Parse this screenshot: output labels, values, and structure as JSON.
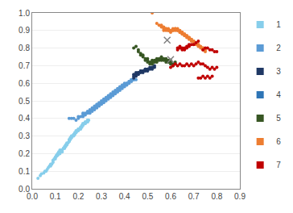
{
  "chart_data": {
    "type": "scatter",
    "marker": "circle",
    "grid": "y",
    "legend": "right",
    "xlim": [
      0.0,
      0.9
    ],
    "ylim": [
      0.0,
      1.0
    ],
    "xticks": [
      {
        "value": 0,
        "label": "0.0"
      },
      0.1,
      0.2,
      0.3,
      0.4,
      0.5,
      0.6,
      0.7,
      0.8,
      0.9
    ],
    "yticks": [
      {
        "value": 0,
        "label": "0.0"
      },
      0.1,
      0.2,
      0.3,
      0.4,
      0.5,
      0.6,
      0.7,
      0.8,
      0.9,
      {
        "value": 1,
        "label": "1.0"
      }
    ],
    "series": [
      {
        "name": "1",
        "color": "#87CEEB",
        "x": [
          0.025,
          0.035,
          0.04,
          0.05,
          0.055,
          0.06,
          0.065,
          0.07,
          0.075,
          0.08,
          0.085,
          0.09,
          0.09,
          0.095,
          0.1,
          0.1,
          0.105,
          0.105,
          0.11,
          0.11,
          0.115,
          0.115,
          0.12,
          0.12,
          0.125,
          0.13,
          0.13,
          0.135,
          0.14,
          0.14,
          0.145,
          0.145,
          0.15,
          0.15,
          0.155,
          0.16,
          0.16,
          0.165,
          0.165,
          0.17,
          0.17,
          0.175,
          0.18,
          0.18,
          0.185,
          0.185,
          0.19,
          0.19,
          0.195,
          0.2,
          0.2,
          0.205,
          0.21,
          0.21,
          0.215,
          0.215,
          0.22,
          0.22,
          0.225,
          0.23,
          0.23,
          0.235,
          0.24,
          0.24,
          0.245,
          0.08,
          0.09,
          0.1,
          0.11,
          0.12,
          0.13,
          0.14,
          0.15,
          0.16,
          0.17,
          0.18,
          0.19,
          0.2,
          0.21,
          0.22,
          0.23,
          0.24
        ],
        "values": [
          0.06,
          0.075,
          0.085,
          0.09,
          0.1,
          0.1,
          0.11,
          0.12,
          0.13,
          0.13,
          0.14,
          0.15,
          0.16,
          0.17,
          0.175,
          0.18,
          0.185,
          0.19,
          0.19,
          0.2,
          0.2,
          0.21,
          0.21,
          0.22,
          0.22,
          0.22,
          0.21,
          0.23,
          0.23,
          0.24,
          0.24,
          0.25,
          0.25,
          0.26,
          0.26,
          0.27,
          0.28,
          0.28,
          0.29,
          0.29,
          0.3,
          0.3,
          0.3,
          0.31,
          0.31,
          0.32,
          0.32,
          0.33,
          0.33,
          0.33,
          0.34,
          0.34,
          0.34,
          0.35,
          0.35,
          0.36,
          0.36,
          0.37,
          0.37,
          0.37,
          0.38,
          0.38,
          0.38,
          0.39,
          0.39,
          0.14,
          0.16,
          0.17,
          0.19,
          0.2,
          0.22,
          0.23,
          0.25,
          0.27,
          0.29,
          0.31,
          0.32,
          0.34,
          0.35,
          0.37,
          0.38,
          0.39
        ]
      },
      {
        "name": "2",
        "color": "#5B9BD5",
        "x": [
          0.16,
          0.17,
          0.18,
          0.19,
          0.2,
          0.2,
          0.21,
          0.22,
          0.22,
          0.23,
          0.24,
          0.25,
          0.25,
          0.26,
          0.26,
          0.27,
          0.27,
          0.28,
          0.28,
          0.29,
          0.29,
          0.3,
          0.3,
          0.31,
          0.31,
          0.32,
          0.32,
          0.33,
          0.33,
          0.34,
          0.34,
          0.35,
          0.35,
          0.36,
          0.36,
          0.37,
          0.37,
          0.38,
          0.38,
          0.39,
          0.39,
          0.4,
          0.4,
          0.41,
          0.41,
          0.42,
          0.42,
          0.43,
          0.43,
          0.44,
          0.44,
          0.45,
          0.22,
          0.24,
          0.26,
          0.28,
          0.3,
          0.32,
          0.34,
          0.36,
          0.38,
          0.4,
          0.42,
          0.23,
          0.25,
          0.27,
          0.29,
          0.31,
          0.33,
          0.35,
          0.37,
          0.39,
          0.41,
          0.43
        ],
        "values": [
          0.4,
          0.4,
          0.4,
          0.39,
          0.4,
          0.41,
          0.41,
          0.41,
          0.42,
          0.42,
          0.43,
          0.43,
          0.44,
          0.44,
          0.45,
          0.45,
          0.46,
          0.46,
          0.47,
          0.47,
          0.48,
          0.48,
          0.49,
          0.49,
          0.5,
          0.5,
          0.51,
          0.51,
          0.52,
          0.52,
          0.53,
          0.53,
          0.54,
          0.54,
          0.55,
          0.55,
          0.56,
          0.56,
          0.57,
          0.57,
          0.58,
          0.58,
          0.59,
          0.59,
          0.6,
          0.6,
          0.61,
          0.61,
          0.62,
          0.62,
          0.62,
          0.62,
          0.43,
          0.44,
          0.46,
          0.48,
          0.5,
          0.52,
          0.54,
          0.56,
          0.58,
          0.6,
          0.61,
          0.43,
          0.45,
          0.47,
          0.49,
          0.51,
          0.53,
          0.55,
          0.57,
          0.59,
          0.6,
          0.62
        ]
      },
      {
        "name": "3",
        "color": "#1F3864",
        "x": [
          0.44,
          0.44,
          0.45,
          0.45,
          0.46,
          0.46,
          0.47,
          0.47,
          0.48,
          0.48,
          0.49,
          0.49,
          0.5,
          0.5,
          0.51,
          0.51,
          0.52,
          0.52,
          0.53,
          0.53,
          0.44,
          0.46,
          0.48,
          0.5,
          0.52,
          0.45,
          0.47,
          0.49
        ],
        "values": [
          0.63,
          0.64,
          0.64,
          0.65,
          0.65,
          0.66,
          0.66,
          0.67,
          0.66,
          0.67,
          0.67,
          0.68,
          0.67,
          0.68,
          0.68,
          0.69,
          0.68,
          0.69,
          0.69,
          0.7,
          0.65,
          0.66,
          0.67,
          0.68,
          0.69,
          0.66,
          0.67,
          0.68
        ]
      },
      {
        "name": "4",
        "color": "#2E75B6",
        "x": [],
        "values": []
      },
      {
        "name": "5",
        "color": "#375623",
        "x": [
          0.44,
          0.45,
          0.46,
          0.46,
          0.47,
          0.47,
          0.48,
          0.48,
          0.49,
          0.49,
          0.5,
          0.5,
          0.51,
          0.51,
          0.52,
          0.52,
          0.53,
          0.53,
          0.54,
          0.54,
          0.55,
          0.55,
          0.56,
          0.56,
          0.57,
          0.57,
          0.58,
          0.58,
          0.59,
          0.59,
          0.6,
          0.6,
          0.61,
          0.61,
          0.62,
          0.62,
          0.5,
          0.52,
          0.54,
          0.56,
          0.58,
          0.6
        ],
        "values": [
          0.8,
          0.81,
          0.79,
          0.78,
          0.77,
          0.76,
          0.76,
          0.75,
          0.74,
          0.73,
          0.73,
          0.72,
          0.71,
          0.72,
          0.71,
          0.72,
          0.72,
          0.73,
          0.72,
          0.73,
          0.73,
          0.74,
          0.73,
          0.74,
          0.73,
          0.74,
          0.72,
          0.73,
          0.72,
          0.73,
          0.71,
          0.72,
          0.71,
          0.7,
          0.71,
          0.72,
          0.74,
          0.73,
          0.74,
          0.75,
          0.74,
          0.73
        ]
      },
      {
        "name": "6",
        "color": "#ED7D31",
        "x": [
          0.52,
          0.54,
          0.55,
          0.56,
          0.57,
          0.57,
          0.58,
          0.58,
          0.59,
          0.59,
          0.6,
          0.6,
          0.61,
          0.61,
          0.62,
          0.62,
          0.63,
          0.63,
          0.64,
          0.64,
          0.65,
          0.65,
          0.66,
          0.66,
          0.67,
          0.67,
          0.68,
          0.68,
          0.69,
          0.69,
          0.7,
          0.7,
          0.71,
          0.71,
          0.72,
          0.72,
          0.73,
          0.73,
          0.74,
          0.74,
          0.75,
          0.75,
          0.56,
          0.58,
          0.6,
          0.62,
          0.64,
          0.66,
          0.68,
          0.7,
          0.72,
          0.74,
          0.57,
          0.59,
          0.61,
          0.63,
          0.65,
          0.67,
          0.69,
          0.71
        ],
        "values": [
          1.0,
          0.94,
          0.93,
          0.93,
          0.92,
          0.91,
          0.91,
          0.9,
          0.91,
          0.9,
          0.9,
          0.89,
          0.9,
          0.91,
          0.91,
          0.9,
          0.91,
          0.9,
          0.9,
          0.89,
          0.89,
          0.88,
          0.88,
          0.87,
          0.87,
          0.86,
          0.86,
          0.85,
          0.85,
          0.84,
          0.84,
          0.83,
          0.83,
          0.82,
          0.82,
          0.81,
          0.81,
          0.8,
          0.8,
          0.79,
          0.79,
          0.78,
          0.92,
          0.91,
          0.9,
          0.91,
          0.89,
          0.88,
          0.86,
          0.84,
          0.82,
          0.8,
          0.9,
          0.9,
          0.9,
          0.9,
          0.89,
          0.87,
          0.85,
          0.83
        ]
      },
      {
        "name": "7",
        "color": "#C00000",
        "x": [
          0.63,
          0.64,
          0.65,
          0.66,
          0.67,
          0.68,
          0.69,
          0.7,
          0.71,
          0.72,
          0.63,
          0.64,
          0.65,
          0.66,
          0.67,
          0.68,
          0.6,
          0.61,
          0.62,
          0.63,
          0.64,
          0.65,
          0.66,
          0.67,
          0.68,
          0.69,
          0.7,
          0.71,
          0.72,
          0.73,
          0.74,
          0.75,
          0.74,
          0.75,
          0.76,
          0.77,
          0.78,
          0.79,
          0.8,
          0.76,
          0.77,
          0.78,
          0.79,
          0.8,
          0.72,
          0.73,
          0.74,
          0.75,
          0.76,
          0.77,
          0.78
        ],
        "values": [
          0.79,
          0.8,
          0.8,
          0.8,
          0.8,
          0.81,
          0.82,
          0.82,
          0.83,
          0.84,
          0.8,
          0.81,
          0.79,
          0.79,
          0.81,
          0.82,
          0.69,
          0.7,
          0.71,
          0.7,
          0.71,
          0.7,
          0.7,
          0.71,
          0.7,
          0.71,
          0.7,
          0.71,
          0.72,
          0.71,
          0.71,
          0.7,
          0.79,
          0.8,
          0.8,
          0.79,
          0.79,
          0.78,
          0.78,
          0.69,
          0.68,
          0.69,
          0.68,
          0.69,
          0.63,
          0.63,
          0.64,
          0.63,
          0.64,
          0.63,
          0.64
        ]
      }
    ],
    "centroids": {
      "marker": "x",
      "color": "#808080",
      "x": [
        0.585,
        0.6
      ],
      "values": [
        0.845,
        0.735
      ]
    }
  }
}
